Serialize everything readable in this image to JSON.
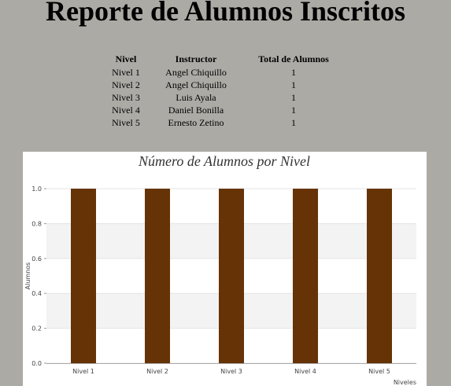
{
  "report": {
    "title": "Reporte de Alumnos Inscritos"
  },
  "table": {
    "headers": [
      "Nivel",
      "Instructor",
      "Total de Alumnos"
    ],
    "rows": [
      {
        "nivel": "Nivel 1",
        "instructor": "Angel Chiquillo",
        "total": "1"
      },
      {
        "nivel": "Nivel 2",
        "instructor": "Angel Chiquillo",
        "total": "1"
      },
      {
        "nivel": "Nivel 3",
        "instructor": "Luis Ayala",
        "total": "1"
      },
      {
        "nivel": "Nivel 4",
        "instructor": "Daniel Bonilla",
        "total": "1"
      },
      {
        "nivel": "Nivel 5",
        "instructor": "Ernesto Zetino",
        "total": "1"
      }
    ]
  },
  "colors": {
    "page_bg": "#acaaa5",
    "bar": "#653306",
    "band": "#f3f3f3"
  },
  "chart_data": {
    "type": "bar",
    "title": "Número de Alumnos por Nivel",
    "xlabel": "Niveles",
    "ylabel": "Alumnos",
    "categories": [
      "Nivel 1",
      "Nivel 2",
      "Nivel 3",
      "Nivel 4",
      "Nivel 5"
    ],
    "values": [
      1,
      1,
      1,
      1,
      1
    ],
    "ylim": [
      0,
      1.0
    ],
    "yticks": [
      "0.0",
      "0.2",
      "0.4",
      "0.6",
      "0.8",
      "1.0"
    ],
    "grid": true,
    "legend": "none"
  }
}
